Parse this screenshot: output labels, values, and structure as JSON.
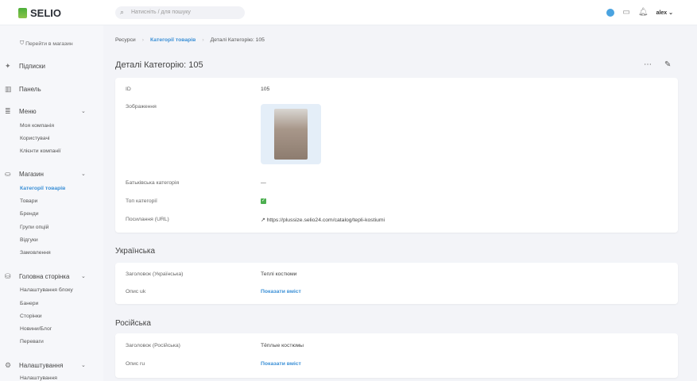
{
  "header": {
    "logo": "SELIO",
    "search_placeholder": "Натисніть / для пошуку",
    "user": "alex"
  },
  "sidebar": {
    "store_link": "Перейти в магазин",
    "top": [
      {
        "label": "Підписки"
      },
      {
        "label": "Панель"
      }
    ],
    "groups": [
      {
        "label": "Меню",
        "items": [
          "Моя компанія",
          "Користувачі",
          "Клієнти компанії"
        ]
      },
      {
        "label": "Магазин",
        "items": [
          "Категорії товарів",
          "Товари",
          "Бренди",
          "Групи опцій",
          "Відгуки",
          "Замовлення"
        ],
        "active": "Категорії товарів"
      },
      {
        "label": "Головна сторінка",
        "items": [
          "Налаштування блоку",
          "Банери",
          "Сторінки",
          "Новини/Блог",
          "Переваги"
        ]
      },
      {
        "label": "Налаштування",
        "items": [
          "Налаштування"
        ]
      }
    ]
  },
  "breadcrumb": [
    "Ресурси",
    "Категорії товарів",
    "Деталі Категорію: 105"
  ],
  "page_title": "Деталі Категорію: 105",
  "details": {
    "id_label": "ID",
    "id": "105",
    "image_label": "Зображення",
    "parent_label": "Батьківська категорія",
    "parent": "—",
    "top_label": "Топ категорії",
    "top_checked": true,
    "url_label": "Посилання (URL)",
    "url": "https://plussize.selio24.com/catalog/tepli-kostiumi"
  },
  "ukrainian": {
    "title": "Українська",
    "heading_label": "Заголовок (Українська)",
    "heading": "Теплі костюми",
    "desc_label": "Опис uk",
    "show": "Показати вміст"
  },
  "russian": {
    "title": "Російська",
    "heading_label": "Заголовок (Російська)",
    "heading": "Тёплые костюмы",
    "desc_label": "Опис ru",
    "show": "Показати вміст"
  }
}
